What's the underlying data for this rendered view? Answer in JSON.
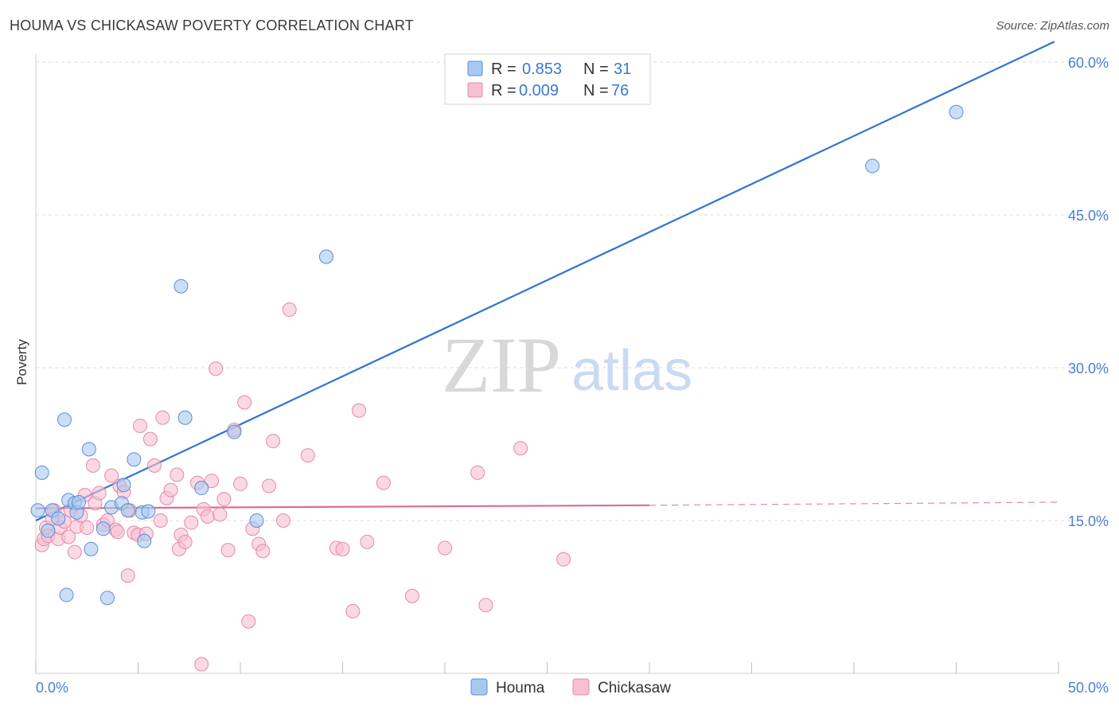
{
  "title": "HOUMA VS CHICKASAW POVERTY CORRELATION CHART",
  "source": "Source: ZipAtlas.com",
  "watermark": {
    "zip": "ZIP",
    "atlas": "atlas"
  },
  "colors": {
    "houma_fill": "#a9c8f0",
    "houma_stroke": "#5a8fd6",
    "houma_line": "#2f74d0",
    "chickasaw_fill": "#f7bfd2",
    "chickasaw_stroke": "#e58aa8",
    "chickasaw_line": "#e06a94",
    "axis_label": "#4a7fd0"
  },
  "legend": {
    "r_label": "R =",
    "n_label": "N =",
    "houma": {
      "r": "0.853",
      "n": "31"
    },
    "chickasaw": {
      "r": "0.009",
      "n": "76"
    }
  },
  "bottom_legend": [
    "Houma",
    "Chickasaw"
  ],
  "chart_data": {
    "type": "scatter",
    "title": "HOUMA VS CHICKASAW POVERTY CORRELATION CHART",
    "xlabel": "",
    "ylabel": "Poverty",
    "xlim": [
      0,
      50
    ],
    "ylim": [
      0,
      60
    ],
    "x_tick_labels": [
      "0.0%",
      "50.0%"
    ],
    "y_tick_labels": [
      "15.0%",
      "30.0%",
      "45.0%",
      "60.0%"
    ],
    "y_ticks": [
      15,
      30,
      45,
      60
    ],
    "grid": true,
    "legend_position": "top-center",
    "series": [
      {
        "name": "Houma",
        "x": [
          0.1,
          0.3,
          0.6,
          0.8,
          1.1,
          1.4,
          1.5,
          1.6,
          1.9,
          2.0,
          2.1,
          2.6,
          2.7,
          3.3,
          3.5,
          3.7,
          4.2,
          4.3,
          4.5,
          4.8,
          5.2,
          5.3,
          5.5,
          7.1,
          7.3,
          8.1,
          9.7,
          10.8,
          14.2,
          40.9,
          45.0
        ],
        "y": [
          16.0,
          19.7,
          14.0,
          16.0,
          15.2,
          24.9,
          7.7,
          17.0,
          16.7,
          15.8,
          16.8,
          22.0,
          12.2,
          14.2,
          7.4,
          16.3,
          16.7,
          18.5,
          16.0,
          21.0,
          15.8,
          13.0,
          15.9,
          38.0,
          25.1,
          18.2,
          23.7,
          15.0,
          40.9,
          49.8,
          55.1
        ]
      },
      {
        "name": "Chickasaw",
        "x": [
          0.3,
          0.4,
          0.5,
          0.6,
          0.8,
          0.9,
          1.1,
          1.2,
          1.4,
          1.6,
          1.7,
          1.9,
          2.0,
          2.2,
          2.4,
          2.5,
          2.8,
          2.9,
          3.1,
          3.3,
          3.5,
          3.7,
          3.9,
          4.0,
          4.1,
          4.3,
          4.5,
          4.6,
          4.8,
          5.0,
          5.1,
          5.4,
          5.6,
          5.8,
          6.1,
          6.2,
          6.4,
          6.6,
          6.9,
          7.0,
          7.1,
          7.3,
          7.6,
          7.9,
          8.1,
          8.2,
          8.4,
          8.6,
          8.8,
          9.0,
          9.2,
          9.4,
          9.7,
          10.0,
          10.2,
          10.4,
          10.6,
          10.9,
          11.1,
          11.4,
          11.6,
          12.1,
          12.4,
          13.3,
          14.7,
          15.0,
          15.5,
          15.8,
          16.2,
          17.0,
          18.4,
          20.0,
          21.6,
          22.0,
          23.7,
          25.8
        ],
        "y": [
          12.6,
          13.2,
          14.3,
          13.5,
          15.2,
          16.0,
          13.2,
          14.3,
          14.9,
          13.4,
          16.0,
          11.9,
          14.4,
          15.5,
          17.5,
          14.3,
          20.4,
          16.7,
          17.7,
          14.6,
          15.0,
          19.4,
          14.1,
          13.9,
          18.4,
          17.8,
          9.6,
          16.0,
          13.8,
          13.6,
          24.3,
          13.7,
          23.0,
          20.4,
          15.0,
          25.1,
          17.2,
          18.0,
          19.5,
          12.2,
          13.6,
          12.9,
          14.8,
          18.7,
          0.9,
          16.1,
          15.4,
          18.9,
          29.9,
          15.6,
          17.1,
          12.1,
          23.9,
          18.6,
          26.6,
          5.1,
          14.2,
          12.7,
          12.0,
          18.4,
          22.8,
          15.0,
          35.7,
          21.4,
          12.3,
          12.2,
          6.1,
          25.8,
          12.9,
          18.7,
          7.6,
          12.3,
          19.7,
          6.7,
          22.1,
          11.2
        ]
      }
    ],
    "trend_lines": [
      {
        "name": "Houma",
        "x": [
          0,
          49.8
        ],
        "y": [
          15.0,
          62.0
        ]
      },
      {
        "name": "Chickasaw",
        "x": [
          0,
          30.0
        ],
        "y": [
          16.2,
          16.5
        ],
        "dashed_from": 30.0,
        "dashed_to": 50.0,
        "dashed_end_y": 16.8
      }
    ]
  }
}
